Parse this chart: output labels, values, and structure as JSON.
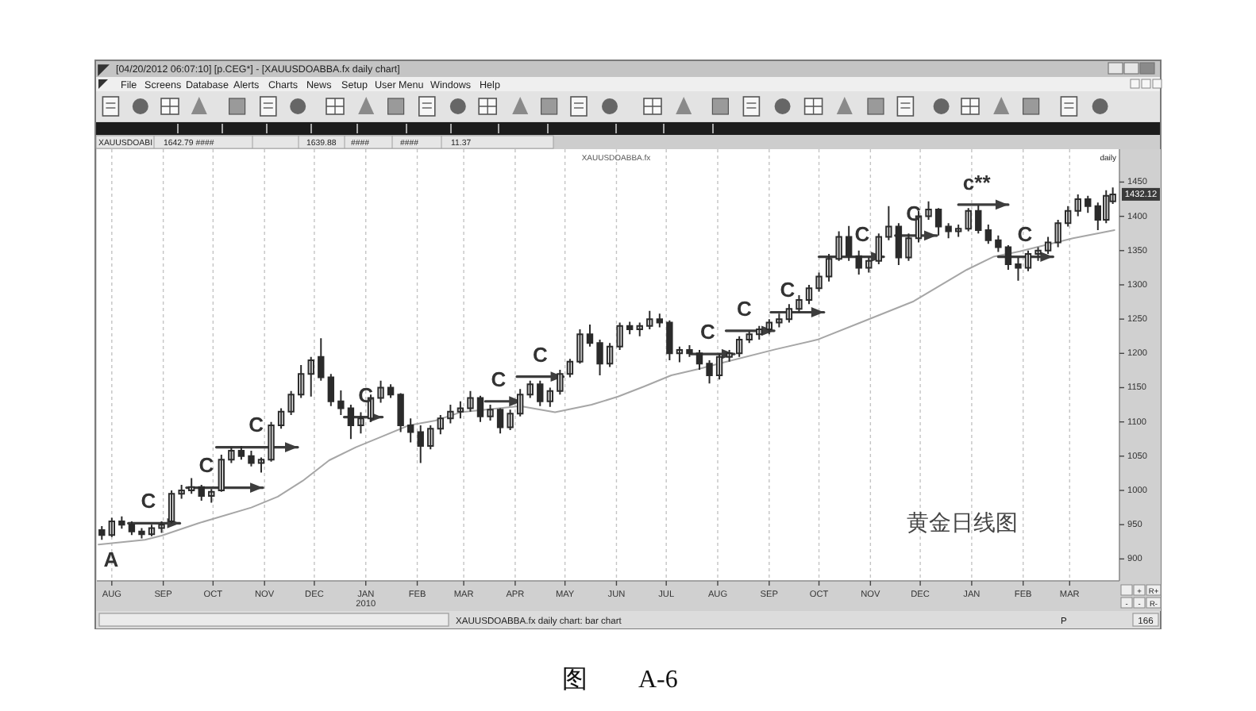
{
  "chart_data": {
    "type": "candlestick",
    "title": "XAUUSDOABBA.fx",
    "color": "#2b2b2b",
    "xlim": [
      "2009-07-23",
      "2011-03-31"
    ],
    "ylim": [
      868,
      1498
    ],
    "xticks": [
      {
        "value": "2009-08-01",
        "label": "AUG"
      },
      {
        "value": "2009-09-01",
        "label": "SEP"
      },
      {
        "value": "2009-10-01",
        "label": "OCT"
      },
      {
        "value": "2009-11-01",
        "label": "NOV"
      },
      {
        "value": "2009-12-01",
        "label": "DEC"
      },
      {
        "value": "2010-01-01",
        "label": "JAN 2010"
      },
      {
        "value": "2010-02-01",
        "label": "FEB"
      },
      {
        "value": "2010-03-01",
        "label": "MAR"
      },
      {
        "value": "2010-04-01",
        "label": "APR"
      },
      {
        "value": "2010-05-01",
        "label": "MAY"
      },
      {
        "value": "2010-06-01",
        "label": "JUN"
      },
      {
        "value": "2010-07-01",
        "label": "JUL"
      },
      {
        "value": "2010-08-01",
        "label": "AUG"
      },
      {
        "value": "2010-09-01",
        "label": "SEP"
      },
      {
        "value": "2010-10-01",
        "label": "OCT"
      },
      {
        "value": "2010-11-01",
        "label": "NOV"
      },
      {
        "value": "2010-12-01",
        "label": "DEC"
      },
      {
        "value": "2011-01-01",
        "label": "JAN"
      },
      {
        "value": "2011-02-01",
        "label": "FEB"
      },
      {
        "value": "2011-03-01",
        "label": "MAR"
      }
    ],
    "yticks": [
      900,
      950,
      1000,
      1050,
      1100,
      1150,
      1200,
      1250,
      1300,
      1350,
      1400,
      1450
    ],
    "grid": "x",
    "x": [
      "2009-07-26",
      "2009-08-01",
      "2009-08-07",
      "2009-08-13",
      "2009-08-19",
      "2009-08-25",
      "2009-08-31",
      "2009-09-06",
      "2009-09-12",
      "2009-09-18",
      "2009-09-24",
      "2009-09-30",
      "2009-10-06",
      "2009-10-12",
      "2009-10-18",
      "2009-10-24",
      "2009-10-30",
      "2009-11-05",
      "2009-11-11",
      "2009-11-17",
      "2009-11-23",
      "2009-11-29",
      "2009-12-05",
      "2009-12-11",
      "2009-12-17",
      "2009-12-23",
      "2009-12-29",
      "2010-01-04",
      "2010-01-10",
      "2010-01-16",
      "2010-01-22",
      "2010-01-28",
      "2010-02-03",
      "2010-02-09",
      "2010-02-15",
      "2010-02-21",
      "2010-02-27",
      "2010-03-05",
      "2010-03-11",
      "2010-03-17",
      "2010-03-23",
      "2010-03-29",
      "2010-04-04",
      "2010-04-10",
      "2010-04-16",
      "2010-04-22",
      "2010-04-28",
      "2010-05-04",
      "2010-05-10",
      "2010-05-16",
      "2010-05-22",
      "2010-05-28",
      "2010-06-03",
      "2010-06-09",
      "2010-06-15",
      "2010-06-21",
      "2010-06-27",
      "2010-07-03",
      "2010-07-09",
      "2010-07-15",
      "2010-07-21",
      "2010-07-27",
      "2010-08-02",
      "2010-08-08",
      "2010-08-14",
      "2010-08-20",
      "2010-08-26",
      "2010-09-01",
      "2010-09-07",
      "2010-09-13",
      "2010-09-19",
      "2010-09-25",
      "2010-10-01",
      "2010-10-07",
      "2010-10-13",
      "2010-10-19",
      "2010-10-25",
      "2010-10-31",
      "2010-11-06",
      "2010-11-12",
      "2010-11-18",
      "2010-11-24",
      "2010-11-30",
      "2010-12-06",
      "2010-12-12",
      "2010-12-18",
      "2010-12-24",
      "2010-12-30",
      "2011-01-05",
      "2011-01-11",
      "2011-01-17",
      "2011-01-23",
      "2011-01-29",
      "2011-02-04",
      "2011-02-10",
      "2011-02-16",
      "2011-02-22",
      "2011-02-28",
      "2011-03-06",
      "2011-03-12",
      "2011-03-18",
      "2011-03-23",
      "2011-03-27"
    ],
    "ohlc": [
      [
        942,
        948,
        928,
        935
      ],
      [
        935,
        960,
        932,
        955
      ],
      [
        955,
        962,
        944,
        950
      ],
      [
        950,
        955,
        935,
        940
      ],
      [
        940,
        945,
        930,
        936
      ],
      [
        936,
        950,
        933,
        945
      ],
      [
        945,
        955,
        938,
        950
      ],
      [
        955,
        1000,
        952,
        995
      ],
      [
        995,
        1008,
        988,
        1000
      ],
      [
        1000,
        1018,
        995,
        1005
      ],
      [
        1005,
        1008,
        985,
        992
      ],
      [
        992,
        1002,
        982,
        998
      ],
      [
        1000,
        1052,
        998,
        1045
      ],
      [
        1045,
        1063,
        1040,
        1058
      ],
      [
        1058,
        1065,
        1045,
        1050
      ],
      [
        1050,
        1058,
        1035,
        1040
      ],
      [
        1040,
        1048,
        1026,
        1045
      ],
      [
        1045,
        1100,
        1042,
        1095
      ],
      [
        1095,
        1120,
        1090,
        1115
      ],
      [
        1115,
        1145,
        1110,
        1140
      ],
      [
        1140,
        1183,
        1135,
        1170
      ],
      [
        1170,
        1195,
        1137,
        1190
      ],
      [
        1195,
        1222,
        1160,
        1165
      ],
      [
        1165,
        1170,
        1123,
        1130
      ],
      [
        1130,
        1146,
        1110,
        1120
      ],
      [
        1120,
        1125,
        1075,
        1095
      ],
      [
        1095,
        1114,
        1083,
        1105
      ],
      [
        1105,
        1140,
        1100,
        1135
      ],
      [
        1135,
        1160,
        1128,
        1150
      ],
      [
        1150,
        1155,
        1135,
        1140
      ],
      [
        1140,
        1142,
        1085,
        1095
      ],
      [
        1095,
        1105,
        1070,
        1085
      ],
      [
        1085,
        1095,
        1040,
        1065
      ],
      [
        1065,
        1095,
        1060,
        1090
      ],
      [
        1090,
        1110,
        1082,
        1105
      ],
      [
        1105,
        1125,
        1098,
        1115
      ],
      [
        1115,
        1130,
        1105,
        1120
      ],
      [
        1120,
        1145,
        1115,
        1135
      ],
      [
        1135,
        1138,
        1100,
        1108
      ],
      [
        1108,
        1125,
        1102,
        1118
      ],
      [
        1118,
        1120,
        1083,
        1092
      ],
      [
        1092,
        1118,
        1088,
        1112
      ],
      [
        1112,
        1148,
        1108,
        1140
      ],
      [
        1140,
        1160,
        1135,
        1155
      ],
      [
        1155,
        1160,
        1123,
        1130
      ],
      [
        1130,
        1150,
        1122,
        1145
      ],
      [
        1145,
        1176,
        1140,
        1170
      ],
      [
        1170,
        1192,
        1165,
        1188
      ],
      [
        1188,
        1235,
        1185,
        1228
      ],
      [
        1228,
        1242,
        1210,
        1215
      ],
      [
        1215,
        1220,
        1168,
        1185
      ],
      [
        1185,
        1215,
        1180,
        1210
      ],
      [
        1210,
        1245,
        1205,
        1240
      ],
      [
        1240,
        1246,
        1228,
        1235
      ],
      [
        1235,
        1245,
        1225,
        1240
      ],
      [
        1240,
        1262,
        1235,
        1250
      ],
      [
        1250,
        1258,
        1238,
        1245
      ],
      [
        1245,
        1248,
        1190,
        1200
      ],
      [
        1200,
        1210,
        1187,
        1205
      ],
      [
        1205,
        1212,
        1195,
        1200
      ],
      [
        1200,
        1205,
        1176,
        1185
      ],
      [
        1185,
        1190,
        1156,
        1168
      ],
      [
        1168,
        1200,
        1162,
        1195
      ],
      [
        1195,
        1205,
        1188,
        1200
      ],
      [
        1200,
        1225,
        1195,
        1220
      ],
      [
        1220,
        1232,
        1215,
        1228
      ],
      [
        1228,
        1240,
        1220,
        1235
      ],
      [
        1235,
        1250,
        1228,
        1245
      ],
      [
        1245,
        1258,
        1238,
        1250
      ],
      [
        1250,
        1272,
        1245,
        1265
      ],
      [
        1265,
        1285,
        1260,
        1278
      ],
      [
        1278,
        1300,
        1272,
        1295
      ],
      [
        1295,
        1318,
        1290,
        1312
      ],
      [
        1312,
        1345,
        1305,
        1338
      ],
      [
        1338,
        1378,
        1335,
        1370
      ],
      [
        1370,
        1386,
        1335,
        1342
      ],
      [
        1342,
        1350,
        1315,
        1325
      ],
      [
        1325,
        1340,
        1318,
        1335
      ],
      [
        1335,
        1375,
        1330,
        1370
      ],
      [
        1370,
        1415,
        1365,
        1385
      ],
      [
        1385,
        1390,
        1329,
        1340
      ],
      [
        1340,
        1375,
        1335,
        1368
      ],
      [
        1368,
        1408,
        1362,
        1400
      ],
      [
        1400,
        1422,
        1395,
        1410
      ],
      [
        1410,
        1412,
        1372,
        1385
      ],
      [
        1385,
        1390,
        1368,
        1378
      ],
      [
        1378,
        1388,
        1370,
        1382
      ],
      [
        1382,
        1412,
        1378,
        1408
      ],
      [
        1408,
        1416,
        1375,
        1380
      ],
      [
        1380,
        1388,
        1360,
        1365
      ],
      [
        1365,
        1372,
        1348,
        1355
      ],
      [
        1355,
        1358,
        1322,
        1330
      ],
      [
        1330,
        1340,
        1306,
        1325
      ],
      [
        1325,
        1350,
        1320,
        1345
      ],
      [
        1345,
        1355,
        1335,
        1350
      ],
      [
        1350,
        1370,
        1345,
        1362
      ],
      [
        1362,
        1395,
        1355,
        1390
      ],
      [
        1390,
        1415,
        1385,
        1408
      ],
      [
        1408,
        1432,
        1400,
        1425
      ],
      [
        1425,
        1430,
        1405,
        1415
      ],
      [
        1415,
        1420,
        1380,
        1395
      ],
      [
        1395,
        1438,
        1390,
        1430
      ],
      [
        1422,
        1442,
        1418,
        1432
      ]
    ],
    "series": [
      {
        "type": "line",
        "color": "#a6a6a6",
        "x": [
          "2009-07-24",
          "2009-08-21",
          "2009-08-31",
          "2009-09-22",
          "2009-10-24",
          "2009-11-09",
          "2009-11-24",
          "2009-12-10",
          "2009-12-26",
          "2010-01-11",
          "2010-01-27",
          "2010-02-12",
          "2010-02-27",
          "2010-04-04",
          "2010-04-25",
          "2010-05-17",
          "2010-06-02",
          "2010-06-18",
          "2010-07-04",
          "2010-07-20",
          "2010-08-05",
          "2010-09-05",
          "2010-09-30",
          "2010-10-26",
          "2010-11-27",
          "2010-12-29",
          "2011-01-14",
          "2011-01-30",
          "2011-03-03",
          "2011-03-28"
        ],
        "values": [
          921,
          928,
          934,
          952,
          975,
          991,
          1014,
          1044,
          1063,
          1079,
          1095,
          1102,
          1114,
          1123,
          1114,
          1125,
          1137,
          1152,
          1168,
          1177,
          1187,
          1206,
          1220,
          1245,
          1276,
          1322,
          1341,
          1349,
          1368,
          1380
        ]
      },
      {
        "type": "line",
        "color": "#3d3d3d",
        "x": [
          "2009-08-11",
          "2009-09-11"
        ],
        "values": [
          952,
          952
        ]
      },
      {
        "type": "line",
        "color": "#3d3d3d",
        "x": [
          "2009-09-15",
          "2009-10-31"
        ],
        "values": [
          1004,
          1004
        ]
      },
      {
        "type": "line",
        "color": "#3d3d3d",
        "x": [
          "2009-10-03",
          "2009-11-21"
        ],
        "values": [
          1063,
          1063
        ]
      },
      {
        "type": "line",
        "color": "#3d3d3d",
        "x": [
          "2009-12-19",
          "2010-01-11"
        ],
        "values": [
          1107,
          1107
        ]
      },
      {
        "type": "line",
        "color": "#3d3d3d",
        "x": [
          "2010-03-14",
          "2010-04-05"
        ],
        "values": [
          1130,
          1130
        ]
      },
      {
        "type": "line",
        "color": "#3d3d3d",
        "x": [
          "2010-04-02",
          "2010-04-30"
        ],
        "values": [
          1166,
          1166
        ]
      },
      {
        "type": "line",
        "color": "#3d3d3d",
        "x": [
          "2010-07-16",
          "2010-08-11"
        ],
        "values": [
          1199,
          1199
        ]
      },
      {
        "type": "line",
        "color": "#3d3d3d",
        "x": [
          "2010-08-06",
          "2010-09-04"
        ],
        "values": [
          1233,
          1233
        ]
      },
      {
        "type": "line",
        "color": "#3d3d3d",
        "x": [
          "2010-09-02",
          "2010-10-04"
        ],
        "values": [
          1260,
          1260
        ]
      },
      {
        "type": "line",
        "color": "#3d3d3d",
        "x": [
          "2010-10-01",
          "2010-11-09"
        ],
        "values": [
          1341,
          1341
        ]
      },
      {
        "type": "line",
        "color": "#3d3d3d",
        "x": [
          "2010-11-16",
          "2010-12-11"
        ],
        "values": [
          1372,
          1372
        ]
      },
      {
        "type": "line",
        "color": "#3d3d3d",
        "x": [
          "2010-12-24",
          "2011-01-23"
        ],
        "values": [
          1417,
          1417
        ]
      },
      {
        "type": "line",
        "color": "#3d3d3d",
        "x": [
          "2011-01-17",
          "2011-02-19"
        ],
        "values": [
          1341,
          1341
        ]
      }
    ],
    "annotations": [
      "[04/20/2012 06:07:10] [p.CEG*] - [XAUUSDOABBA.fx daily chart]",
      "File",
      "Screens",
      "Database",
      "Alerts",
      "Charts",
      "News",
      "Setup",
      "User Menu",
      "Windows",
      "Help",
      "XAUUSDOABI",
      "1642.79 ####",
      "1639.88",
      "####",
      "####",
      "11.37",
      "daily",
      "A",
      {
        "text": "1432.12",
        "y": 1432.12
      },
      {
        "text": "C",
        "x": "2009-08-23",
        "y": 952
      },
      {
        "text": "C",
        "x": "2009-09-27",
        "y": 1004
      },
      {
        "text": "C",
        "x": "2009-10-27",
        "y": 1063
      },
      {
        "text": "C",
        "x": "2010-01-01",
        "y": 1107
      },
      {
        "text": "C",
        "x": "2010-03-22",
        "y": 1130
      },
      {
        "text": "C",
        "x": "2010-04-16",
        "y": 1166
      },
      {
        "text": "C",
        "x": "2010-07-26",
        "y": 1199
      },
      {
        "text": "C",
        "x": "2010-08-17",
        "y": 1233
      },
      {
        "text": "C",
        "x": "2010-09-12",
        "y": 1260
      },
      {
        "text": "C",
        "x": "2010-10-27",
        "y": 1341
      },
      {
        "text": "C",
        "x": "2010-11-27",
        "y": 1372
      },
      {
        "text": "c**",
        "x": "2011-01-04",
        "y": 1417
      },
      {
        "text": "C",
        "x": "2011-02-02",
        "y": 1341
      },
      "黄金日线图",
      "XAUUSDOABBA.fx daily chart: bar chart",
      "P",
      "166",
      "+",
      "R+",
      "-",
      "-",
      "R-",
      "图　　A-6"
    ]
  }
}
